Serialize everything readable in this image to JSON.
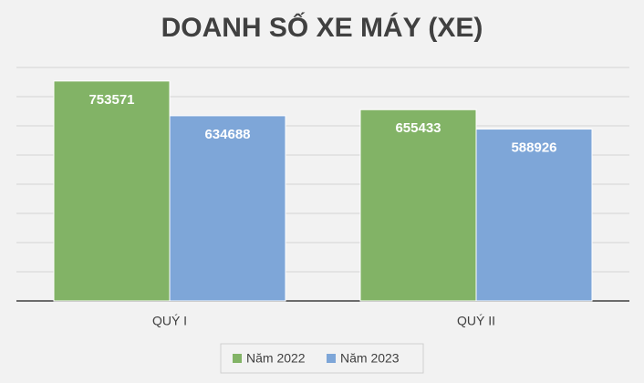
{
  "chart_data": {
    "type": "bar",
    "title": "DOANH SỐ XE MÁY (XE)",
    "categories": [
      "QUÝ I",
      "QUÝ II"
    ],
    "series": [
      {
        "name": "Năm 2022",
        "color": "#82b366",
        "values": [
          753571,
          655433
        ]
      },
      {
        "name": "Năm 2023",
        "color": "#7ea6d8",
        "values": [
          634688,
          588926
        ]
      }
    ],
    "ylim": [
      0,
      800000
    ],
    "yticks": [
      0,
      100000,
      200000,
      300000,
      400000,
      500000,
      600000,
      700000,
      800000
    ],
    "grid": true
  }
}
